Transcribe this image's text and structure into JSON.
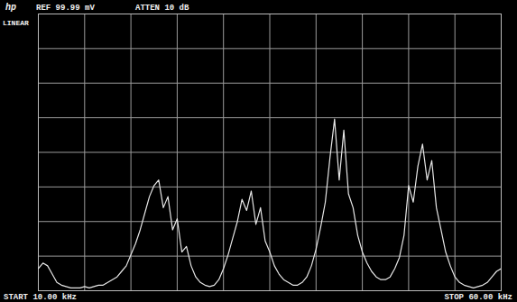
{
  "chart_data": {
    "type": "line",
    "annotations": [
      "hp",
      "REF 99.99 mV",
      "ATTEN 10 dB",
      "LINEAR",
      "START 10.00 kHz",
      "STOP 60.00 kHz"
    ],
    "x": [
      10,
      10.5,
      11,
      11.5,
      12,
      12.5,
      13,
      13.5,
      14,
      14.5,
      15,
      15.5,
      16,
      16.5,
      17,
      17.5,
      18,
      18.5,
      19,
      19.5,
      20,
      20.5,
      21,
      21.5,
      22,
      22.5,
      23,
      23.5,
      24,
      24.5,
      25,
      25.5,
      26,
      26.5,
      27,
      27.5,
      28,
      28.5,
      29,
      29.5,
      30,
      30.5,
      31,
      31.5,
      32,
      32.5,
      33,
      33.5,
      34,
      34.5,
      35,
      35.5,
      36,
      36.5,
      37,
      37.5,
      38,
      38.5,
      39,
      39.5,
      40,
      40.5,
      41,
      41.5,
      42,
      42.5,
      43,
      43.5,
      44,
      44.5,
      45,
      45.5,
      46,
      46.5,
      47,
      47.5,
      48,
      48.5,
      49,
      49.5,
      50,
      50.5,
      51,
      51.5,
      52,
      52.5,
      53,
      53.5,
      54,
      54.5,
      55,
      55.5,
      56,
      56.5,
      57,
      57.5,
      58,
      58.5,
      59,
      59.5,
      60
    ],
    "values": [
      8,
      10,
      9,
      6,
      3,
      2,
      1.5,
      1,
      1,
      1,
      1.5,
      1,
      1.5,
      2,
      2,
      3,
      4,
      5,
      7,
      9,
      13,
      17,
      22,
      28,
      34,
      38,
      40,
      30,
      34,
      22,
      26,
      14,
      16,
      9,
      5,
      3,
      2,
      1.5,
      2,
      4,
      8,
      13,
      19,
      25,
      33,
      29,
      36,
      24,
      30,
      18,
      14,
      9,
      6,
      4,
      3,
      2,
      2,
      3,
      5,
      9,
      15,
      23,
      32,
      48,
      62,
      40,
      58,
      35,
      30,
      20,
      14,
      10,
      7,
      5,
      4,
      4,
      5,
      8,
      12,
      20,
      38,
      32,
      45,
      53,
      40,
      47,
      30,
      22,
      14,
      9,
      5,
      3,
      2,
      1.5,
      1,
      1.5,
      2,
      3,
      5,
      7,
      8
    ],
    "color": "#e6e6e6",
    "xlim": [
      10,
      60
    ],
    "xticks": [
      10,
      15,
      20,
      25,
      30,
      35,
      40,
      45,
      50,
      55,
      60
    ],
    "ylim": [
      0,
      99.99
    ],
    "yticks": [
      0,
      12.5,
      25,
      37.5,
      50,
      62.5,
      75,
      87.5,
      99.99
    ],
    "grid": true,
    "tick_labels": false
  }
}
